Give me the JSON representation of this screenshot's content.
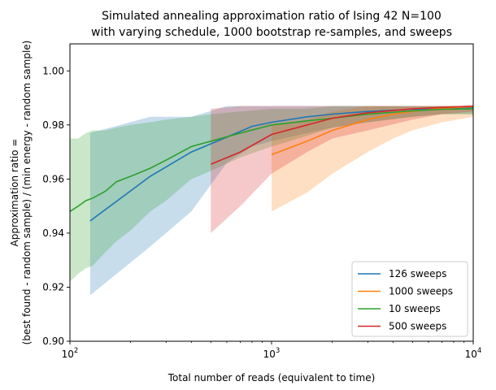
{
  "chart_data": {
    "type": "line",
    "title_lines": [
      "Simulated annealing approximation ratio of Ising 42 N=100",
      "with varying schedule, 1000 bootstrap re-samples, and sweeps"
    ],
    "xlabel": "Total number of reads (equivalent to time)",
    "ylabel_lines": [
      "Approximation ratio =",
      "(best found - random sample) / (min energy - random sample)"
    ],
    "x_scale": "log",
    "xlim": [
      100,
      10000
    ],
    "ylim": [
      0.9,
      1.01
    ],
    "x_ticks": [
      {
        "value": 100,
        "base": "10",
        "exp": "2"
      },
      {
        "value": 1000,
        "base": "10",
        "exp": "3"
      },
      {
        "value": 10000,
        "base": "10",
        "exp": "4"
      }
    ],
    "y_ticks": [
      {
        "value": 0.9,
        "label": "0.90"
      },
      {
        "value": 0.92,
        "label": "0.92"
      },
      {
        "value": 0.94,
        "label": "0.94"
      },
      {
        "value": 0.96,
        "label": "0.96"
      },
      {
        "value": 0.98,
        "label": "0.98"
      },
      {
        "value": 1.0,
        "label": "1.00"
      }
    ],
    "grid": false,
    "legend_position": "lower-right",
    "series": [
      {
        "name": "126 sweeps",
        "color": "#1f77b4",
        "x": [
          126,
          250,
          400,
          600,
          800,
          1000,
          1500,
          2000,
          3000,
          5000,
          7000,
          10000
        ],
        "y": [
          0.9445,
          0.961,
          0.97,
          0.9755,
          0.9795,
          0.981,
          0.983,
          0.984,
          0.985,
          0.9858,
          0.9862,
          0.9865
        ],
        "lower": [
          0.917,
          0.935,
          0.948,
          0.966,
          0.972,
          0.974,
          0.977,
          0.979,
          0.981,
          0.983,
          0.984,
          0.984
        ],
        "upper": [
          0.977,
          0.983,
          0.983,
          0.987,
          0.987,
          0.987,
          0.987,
          0.987,
          0.987,
          0.987,
          0.987,
          0.987
        ]
      },
      {
        "name": "1000 sweeps",
        "color": "#ff7f0e",
        "x": [
          1000,
          1500,
          2000,
          3000,
          4000,
          5000,
          7000,
          10000
        ],
        "y": [
          0.969,
          0.974,
          0.978,
          0.982,
          0.984,
          0.985,
          0.9862,
          0.9868
        ],
        "lower": [
          0.948,
          0.955,
          0.962,
          0.97,
          0.975,
          0.978,
          0.981,
          0.983
        ],
        "upper": [
          0.98,
          0.982,
          0.985,
          0.987,
          0.987,
          0.987,
          0.987,
          0.987
        ]
      },
      {
        "name": "10 sweeps",
        "color": "#2ca02c",
        "x": [
          100,
          110,
          120,
          130,
          150,
          170,
          200,
          250,
          300,
          400,
          500,
          700,
          1000,
          1500,
          2000,
          3000,
          5000,
          7000,
          10000
        ],
        "y": [
          0.948,
          0.95,
          0.952,
          0.953,
          0.9555,
          0.959,
          0.961,
          0.964,
          0.967,
          0.972,
          0.974,
          0.977,
          0.98,
          0.9815,
          0.9825,
          0.984,
          0.9852,
          0.9858,
          0.986
        ],
        "lower": [
          0.922,
          0.925,
          0.927,
          0.928,
          0.933,
          0.937,
          0.941,
          0.948,
          0.952,
          0.96,
          0.963,
          0.968,
          0.972,
          0.976,
          0.979,
          0.981,
          0.983,
          0.984,
          0.984
        ],
        "upper": [
          0.975,
          0.975,
          0.977,
          0.978,
          0.978,
          0.979,
          0.98,
          0.981,
          0.982,
          0.983,
          0.984,
          0.985,
          0.986,
          0.986,
          0.987,
          0.987,
          0.987,
          0.987,
          0.987
        ]
      },
      {
        "name": "500 sweeps",
        "color": "#d62728",
        "x": [
          500,
          700,
          1000,
          1500,
          2000,
          3000,
          5000,
          7000,
          10000
        ],
        "y": [
          0.9655,
          0.97,
          0.9765,
          0.98,
          0.9825,
          0.9845,
          0.986,
          0.9865,
          0.987
        ],
        "lower": [
          0.94,
          0.95,
          0.962,
          0.97,
          0.975,
          0.978,
          0.982,
          0.984,
          0.985
        ],
        "upper": [
          0.986,
          0.987,
          0.987,
          0.987,
          0.987,
          0.987,
          0.987,
          0.987,
          0.987
        ]
      }
    ]
  }
}
